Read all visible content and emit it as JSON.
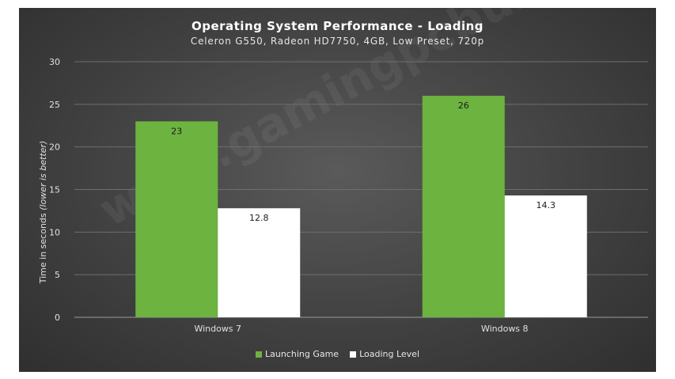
{
  "chart_data": {
    "type": "bar",
    "title": "Operating System Performance - Loading",
    "subtitle": "Celeron G550, Radeon HD7750, 4GB, Low Preset, 720p",
    "ylabel_main": "Time in seconds ",
    "ylabel_italic": "(lower is better)",
    "xlabel": "",
    "categories": [
      "Windows 7",
      "Windows 8"
    ],
    "series": [
      {
        "name": "Launching Game",
        "color": "#6db33f",
        "values": [
          23,
          26
        ]
      },
      {
        "name": "Loading Level",
        "color": "#ffffff",
        "values": [
          12.8,
          14.3
        ]
      }
    ],
    "ylim": [
      0,
      30
    ],
    "yticks": [
      "0",
      "5",
      "10",
      "15",
      "20",
      "25",
      "30"
    ],
    "grid": true,
    "legend": "bottom-center",
    "watermark": "www.gamingpcbuilder.com"
  }
}
